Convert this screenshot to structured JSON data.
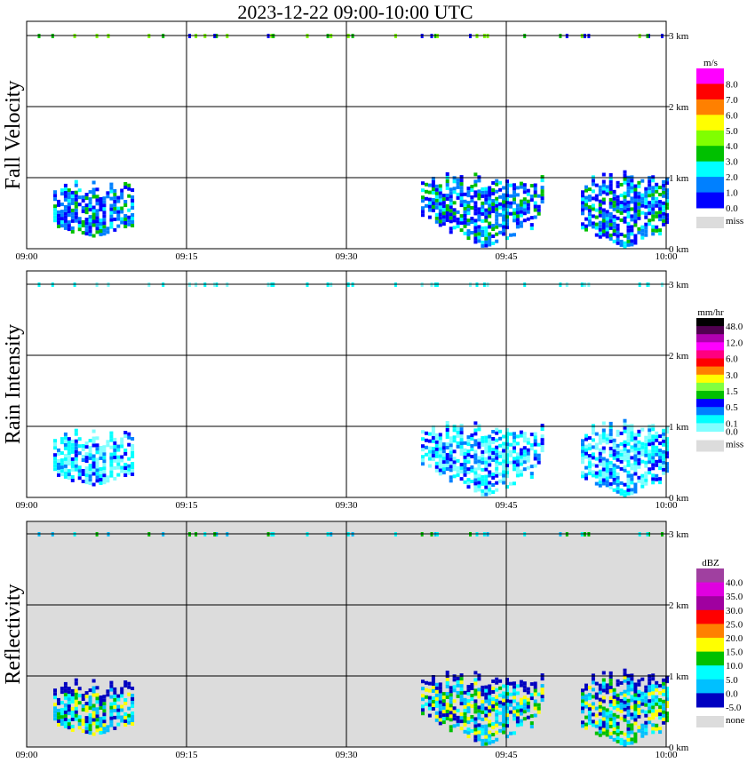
{
  "title": "2023-12-22   09:00-10:00 UTC",
  "chart_data": {
    "type": "heatmap",
    "title": "2023-12-22   09:00-10:00 UTC",
    "x_ticks": [
      "09:00",
      "09:15",
      "09:30",
      "09:45",
      "10:00"
    ],
    "xlim_minutes": [
      0,
      60
    ],
    "y_ticks": [
      "0 km",
      "1 km",
      "2 km",
      "3 km"
    ],
    "ylim_km": [
      0,
      3.3
    ],
    "echo_regions": [
      {
        "start_min": 2.5,
        "end_min": 10,
        "top_km": 0.95,
        "bottom_km": 0.15,
        "taper": 0.3
      },
      {
        "start_min": 37,
        "end_min": 48.5,
        "top_km": 1.05,
        "bottom_km": 0.0,
        "taper": 0.85
      },
      {
        "start_min": 52,
        "end_min": 60,
        "top_km": 1.1,
        "bottom_km": 0.0,
        "taper": 0.5
      }
    ],
    "cloud_specks_km": 3.0,
    "panels": [
      {
        "name": "Fall Velocity",
        "unit": "m/s",
        "background": "#ffffff",
        "legend_labels": [
          "8.0",
          "7.0",
          "6.0",
          "5.0",
          "4.0",
          "3.0",
          "2.0",
          "1.0",
          "0.0"
        ],
        "legend_colors": [
          "#ff00ff",
          "#ff0000",
          "#ff8000",
          "#ffff00",
          "#80ff00",
          "#00c000",
          "#00ffff",
          "#0080ff",
          "#0000ff"
        ],
        "miss_label": "miss",
        "miss_color": "#dcdcdc",
        "echo_palette": [
          "#0000ff",
          "#0080ff",
          "#0080ff",
          "#00ffff",
          "#0000ff",
          "#00c000"
        ],
        "speck_palette": [
          "#80ff00",
          "#00c000",
          "#80ff00",
          "#0000ff"
        ]
      },
      {
        "name": "Rain Intensity",
        "unit": "mm/hr",
        "background": "#ffffff",
        "legend_labels": [
          "48.0",
          "12.0",
          "6.0",
          "3.0",
          "1.5",
          "0.5",
          "0.1",
          "0.0"
        ],
        "legend_colors": [
          "#000000",
          "#500050",
          "#b000b0",
          "#ff00ff",
          "#ff0080",
          "#ff0000",
          "#ff8000",
          "#ffff00",
          "#80ff40",
          "#00c000",
          "#0000ff",
          "#0080ff",
          "#00ffff",
          "#80ffff"
        ],
        "miss_label": "miss",
        "miss_color": "#dcdcdc",
        "echo_palette": [
          "#80ffff",
          "#80ffff",
          "#00ffff",
          "#00ffff",
          "#0080ff",
          "#0000ff"
        ],
        "speck_palette": [
          "#00ffff",
          "#80ffff"
        ]
      },
      {
        "name": "Reflectivity",
        "unit": "dBZ",
        "background": "#dcdcdc",
        "legend_labels": [
          "40.0",
          "35.0",
          "30.0",
          "25.0",
          "20.0",
          "15.0",
          "10.0",
          "5.0",
          "0.0",
          "-5.0"
        ],
        "legend_colors": [
          "#a040a0",
          "#e000e0",
          "#a000a0",
          "#ff0000",
          "#ff8000",
          "#ffff00",
          "#00c000",
          "#00ffff",
          "#00c0ff",
          "#0000c0"
        ],
        "miss_label": "none",
        "miss_color": "#dcdcdc",
        "echo_palette": [
          "#0000c0",
          "#00c0ff",
          "#00ffff",
          "#00c0ff",
          "#00c000",
          "#ffff00"
        ],
        "speck_palette": [
          "#00ffff",
          "#00c0ff",
          "#00c000"
        ]
      }
    ]
  }
}
